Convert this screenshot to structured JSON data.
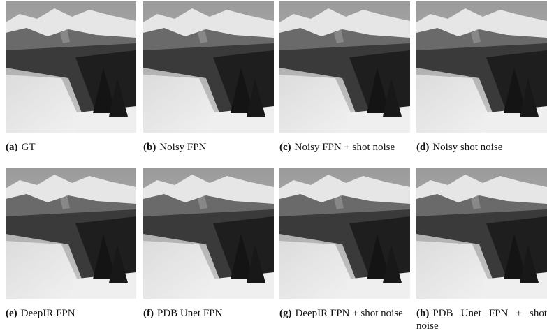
{
  "figures": [
    {
      "label": "(a)",
      "caption": "GT"
    },
    {
      "label": "(b)",
      "caption": "Noisy FPN"
    },
    {
      "label": "(c)",
      "caption": "Noisy FPN + shot noise"
    },
    {
      "label": "(d)",
      "caption": "Noisy shot noise"
    },
    {
      "label": "(e)",
      "caption": "DeepIR FPN"
    },
    {
      "label": "(f)",
      "caption": "PDB Unet FPN"
    },
    {
      "label": "(g)",
      "caption": "DeepIR FPN + shot noise"
    },
    {
      "label": "(h)",
      "caption": "PDB Unet FPN + shot noise"
    }
  ]
}
